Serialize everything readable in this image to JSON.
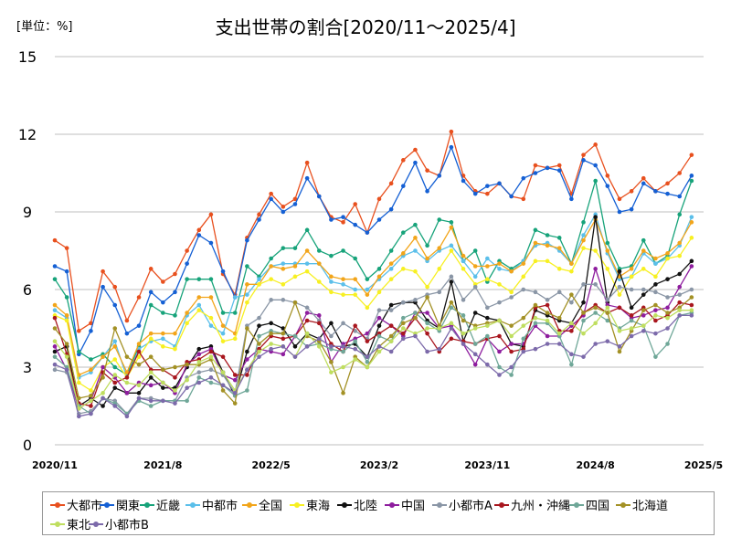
{
  "header": {
    "unit": "[単位：%]"
  },
  "chart_data": {
    "type": "line",
    "title": "支出世帯の割合[2020/11～2025/4]",
    "xlabel": "",
    "ylabel": "",
    "ylim": [
      0,
      15
    ],
    "y_ticks": [
      "0",
      "3",
      "6",
      "9",
      "12",
      "15"
    ],
    "x_start": "2020/11",
    "x_ticks": [
      "2020/11",
      "2021/8",
      "2022/5",
      "2023/2",
      "2023/11",
      "2024/8",
      "2025/5"
    ],
    "grid": "horizontal",
    "legend_position": "bottom",
    "series": [
      {
        "name": "大都市",
        "color": "#e8501e",
        "values": [
          7.9,
          7.6,
          4.4,
          4.7,
          6.7,
          6.1,
          4.8,
          5.7,
          6.8,
          6.3,
          6.6,
          7.5,
          8.3,
          8.9,
          6.6,
          5.8,
          8.0,
          8.9,
          9.7,
          9.2,
          9.5,
          10.9,
          9.6,
          8.8,
          8.6,
          9.3,
          8.2,
          9.5,
          10.1,
          11.0,
          11.4,
          10.6,
          10.4,
          12.1,
          10.4,
          9.8,
          9.7,
          10.1,
          9.6,
          9.5,
          10.8,
          10.7,
          10.8,
          9.7,
          11.2,
          11.6,
          10.4,
          9.5,
          9.8,
          10.3,
          9.8,
          10.1,
          10.5,
          11.2
        ]
      },
      {
        "name": "関東",
        "color": "#1560d4",
        "values": [
          6.9,
          6.7,
          3.5,
          4.4,
          6.1,
          5.4,
          4.3,
          4.6,
          5.9,
          5.5,
          5.9,
          7.0,
          8.1,
          7.8,
          6.7,
          5.7,
          7.9,
          8.7,
          9.5,
          9.0,
          9.3,
          10.3,
          9.6,
          8.7,
          8.8,
          8.5,
          8.2,
          8.7,
          9.1,
          10.0,
          10.9,
          9.8,
          10.4,
          11.5,
          10.2,
          9.7,
          10.0,
          10.1,
          9.6,
          10.3,
          10.5,
          10.7,
          10.6,
          9.5,
          11.0,
          10.8,
          10.0,
          9.0,
          9.1,
          10.1,
          9.8,
          9.7,
          9.6,
          10.4
        ]
      },
      {
        "name": "近畿",
        "color": "#17a37a",
        "values": [
          6.4,
          5.7,
          3.6,
          3.3,
          3.5,
          3.0,
          2.7,
          3.8,
          5.4,
          5.1,
          5.0,
          6.4,
          6.4,
          6.4,
          5.1,
          5.1,
          6.9,
          6.5,
          7.2,
          7.6,
          7.6,
          8.3,
          7.5,
          7.3,
          7.5,
          7.2,
          6.4,
          6.8,
          7.5,
          8.2,
          8.5,
          7.7,
          8.7,
          8.6,
          7.1,
          7.5,
          6.3,
          7.1,
          6.8,
          7.1,
          8.3,
          8.1,
          8.0,
          7.0,
          8.6,
          10.2,
          7.8,
          6.8,
          6.9,
          7.9,
          7.0,
          7.3,
          8.9,
          10.2
        ]
      },
      {
        "name": "中都市",
        "color": "#5bbfea",
        "values": [
          5.2,
          4.9,
          2.6,
          2.8,
          3.4,
          4.0,
          2.6,
          3.7,
          4.0,
          4.1,
          3.8,
          5.0,
          5.4,
          4.6,
          4.3,
          5.7,
          5.8,
          6.4,
          6.9,
          7.0,
          7.0,
          7.0,
          7.0,
          6.3,
          6.2,
          6.0,
          6.0,
          6.4,
          6.8,
          7.3,
          7.5,
          7.1,
          7.5,
          7.7,
          7.1,
          6.5,
          7.2,
          6.8,
          6.7,
          7.1,
          7.7,
          7.8,
          7.5,
          7.0,
          8.1,
          8.9,
          7.4,
          6.4,
          6.5,
          7.4,
          7.0,
          7.2,
          7.7,
          8.8
        ]
      },
      {
        "name": "全国",
        "color": "#f2a51a",
        "values": [
          5.4,
          5.0,
          2.7,
          2.9,
          3.4,
          3.8,
          2.8,
          3.9,
          4.3,
          4.3,
          4.3,
          5.1,
          5.7,
          5.7,
          4.6,
          4.3,
          6.2,
          6.2,
          6.9,
          6.8,
          6.9,
          7.5,
          7.0,
          6.5,
          6.4,
          6.4,
          5.8,
          6.5,
          7.0,
          7.4,
          8.0,
          7.2,
          7.6,
          8.4,
          7.3,
          6.9,
          6.9,
          7.0,
          6.7,
          7.0,
          7.8,
          7.7,
          7.6,
          7.0,
          7.9,
          8.7,
          7.5,
          6.5,
          6.8,
          7.5,
          7.2,
          7.4,
          7.8,
          8.6
        ]
      },
      {
        "name": "東海",
        "color": "#f7f022",
        "values": [
          5.0,
          4.8,
          2.4,
          2.1,
          3.0,
          3.3,
          2.6,
          3.4,
          4.1,
          3.8,
          3.7,
          4.7,
          5.2,
          4.9,
          4.0,
          4.1,
          5.5,
          6.2,
          6.4,
          6.2,
          6.5,
          6.7,
          6.3,
          5.9,
          5.8,
          5.8,
          5.3,
          5.9,
          6.4,
          6.8,
          6.7,
          6.1,
          6.8,
          7.5,
          6.8,
          6.2,
          6.4,
          6.2,
          5.9,
          6.5,
          7.1,
          7.1,
          6.8,
          6.7,
          7.6,
          7.5,
          6.8,
          5.8,
          6.5,
          6.8,
          6.5,
          7.2,
          7.3,
          8.0
        ]
      },
      {
        "name": "北陸",
        "color": "#111111",
        "values": [
          3.6,
          3.8,
          1.5,
          1.8,
          1.5,
          2.2,
          2.0,
          2.0,
          2.6,
          2.2,
          2.2,
          3.0,
          3.7,
          3.8,
          2.8,
          1.9,
          3.6,
          4.6,
          4.7,
          4.5,
          3.8,
          4.3,
          4.1,
          4.7,
          3.8,
          3.9,
          3.4,
          4.6,
          5.4,
          5.5,
          5.5,
          4.8,
          4.5,
          6.3,
          4.0,
          5.1,
          4.9,
          4.8,
          3.9,
          3.8,
          5.2,
          5.0,
          4.8,
          4.7,
          5.5,
          8.8,
          5.5,
          6.7,
          5.3,
          5.8,
          6.2,
          6.4,
          6.6,
          7.1
        ]
      },
      {
        "name": "中国",
        "color": "#8e1d9e",
        "values": [
          3.8,
          2.9,
          1.4,
          1.7,
          3.0,
          2.6,
          2.0,
          2.4,
          2.3,
          2.4,
          2.0,
          3.1,
          3.5,
          3.7,
          2.7,
          2.5,
          3.3,
          3.7,
          3.6,
          3.5,
          4.2,
          5.1,
          5.0,
          3.2,
          3.9,
          4.1,
          4.3,
          4.9,
          4.6,
          4.2,
          5.1,
          5.1,
          4.5,
          4.6,
          3.9,
          3.1,
          4.1,
          3.6,
          3.9,
          3.9,
          4.6,
          4.2,
          4.2,
          4.6,
          5.0,
          6.8,
          5.4,
          5.3,
          4.9,
          5.0,
          5.2,
          5.3,
          6.1,
          6.9
        ]
      },
      {
        "name": "小都市A",
        "color": "#8a96a6",
        "values": [
          2.9,
          2.8,
          1.2,
          1.3,
          1.8,
          1.7,
          1.2,
          1.8,
          1.8,
          1.7,
          1.7,
          2.6,
          2.8,
          2.9,
          2.7,
          2.0,
          4.6,
          4.9,
          5.6,
          5.6,
          5.5,
          5.3,
          4.8,
          4.2,
          4.7,
          4.4,
          4.1,
          5.2,
          5.2,
          5.5,
          5.6,
          5.8,
          5.9,
          6.5,
          5.6,
          6.1,
          5.3,
          5.5,
          5.7,
          6.0,
          5.9,
          5.6,
          5.9,
          5.5,
          6.2,
          6.2,
          5.6,
          6.1,
          6.0,
          6.0,
          5.9,
          5.7,
          5.8,
          6.0
        ]
      },
      {
        "name": "九州・沖縄",
        "color": "#a8161e",
        "values": [
          4.9,
          3.5,
          1.6,
          1.5,
          2.8,
          2.4,
          2.6,
          3.6,
          2.9,
          2.9,
          2.6,
          3.2,
          3.3,
          3.6,
          3.4,
          2.7,
          2.7,
          3.7,
          4.2,
          4.1,
          4.2,
          4.8,
          4.7,
          3.9,
          3.6,
          4.6,
          4.0,
          4.3,
          4.6,
          4.3,
          4.9,
          4.3,
          3.6,
          4.1,
          4.0,
          3.9,
          4.1,
          4.2,
          3.6,
          3.7,
          5.3,
          5.4,
          4.4,
          4.4,
          5.1,
          5.4,
          5.1,
          5.3,
          5.0,
          5.3,
          4.8,
          5.0,
          5.5,
          5.4
        ]
      },
      {
        "name": "四国",
        "color": "#6fa798",
        "values": [
          3.4,
          3.0,
          1.5,
          1.2,
          1.8,
          1.6,
          1.2,
          1.7,
          1.5,
          1.7,
          1.7,
          1.7,
          2.6,
          2.4,
          2.3,
          1.9,
          2.1,
          4.2,
          4.4,
          4.3,
          4.2,
          3.8,
          3.9,
          3.7,
          3.6,
          4.0,
          3.2,
          4.2,
          4.0,
          4.9,
          5.1,
          4.7,
          4.4,
          5.3,
          5.0,
          3.9,
          4.2,
          3.0,
          2.7,
          4.1,
          4.7,
          4.7,
          4.2,
          3.1,
          4.8,
          5.1,
          4.8,
          4.5,
          4.8,
          4.6,
          3.4,
          3.9,
          5.0,
          5.1
        ]
      },
      {
        "name": "北海道",
        "color": "#a39125",
        "values": [
          4.5,
          3.9,
          1.8,
          1.9,
          2.6,
          4.5,
          3.4,
          3.1,
          3.4,
          2.9,
          3.0,
          3.1,
          3.1,
          3.3,
          2.1,
          1.6,
          4.5,
          3.9,
          4.3,
          4.3,
          5.5,
          4.2,
          4.0,
          3.2,
          2.0,
          3.4,
          3.0,
          3.8,
          4.2,
          4.7,
          4.9,
          5.7,
          4.6,
          5.5,
          4.8,
          4.6,
          4.7,
          4.8,
          4.6,
          4.9,
          5.4,
          5.1,
          4.9,
          5.8,
          5.1,
          5.3,
          5.1,
          3.6,
          4.4,
          5.2,
          5.4,
          5.1,
          5.3,
          5.7
        ]
      },
      {
        "name": "東北",
        "color": "#bfde5f",
        "values": [
          4.0,
          3.4,
          1.4,
          1.7,
          2.0,
          2.7,
          2.4,
          2.3,
          2.8,
          2.4,
          2.1,
          2.5,
          3.2,
          3.4,
          2.8,
          2.1,
          2.9,
          3.6,
          3.9,
          3.8,
          3.4,
          4.3,
          3.8,
          2.8,
          3.0,
          3.3,
          3.0,
          3.6,
          4.0,
          4.5,
          4.3,
          4.5,
          4.5,
          4.7,
          4.3,
          4.5,
          4.6,
          4.8,
          4.2,
          4.6,
          4.9,
          4.8,
          4.3,
          4.7,
          4.3,
          4.7,
          5.3,
          4.4,
          4.5,
          4.6,
          5.0,
          4.9,
          5.2,
          5.2
        ]
      },
      {
        "name": "小都市B",
        "color": "#7c6aaa",
        "values": [
          3.1,
          2.9,
          1.1,
          1.2,
          1.8,
          1.5,
          1.1,
          1.8,
          1.7,
          1.7,
          1.6,
          2.2,
          2.4,
          2.6,
          2.3,
          2.0,
          2.9,
          3.4,
          3.7,
          3.8,
          3.4,
          3.8,
          4.1,
          3.8,
          3.8,
          3.7,
          3.4,
          3.8,
          3.6,
          4.1,
          4.2,
          3.6,
          3.7,
          4.5,
          3.9,
          3.5,
          3.1,
          2.7,
          3.0,
          3.6,
          3.7,
          3.9,
          3.9,
          3.5,
          3.4,
          3.9,
          4.0,
          3.8,
          4.2,
          4.4,
          4.3,
          4.5,
          5.0,
          5.0
        ]
      }
    ]
  }
}
